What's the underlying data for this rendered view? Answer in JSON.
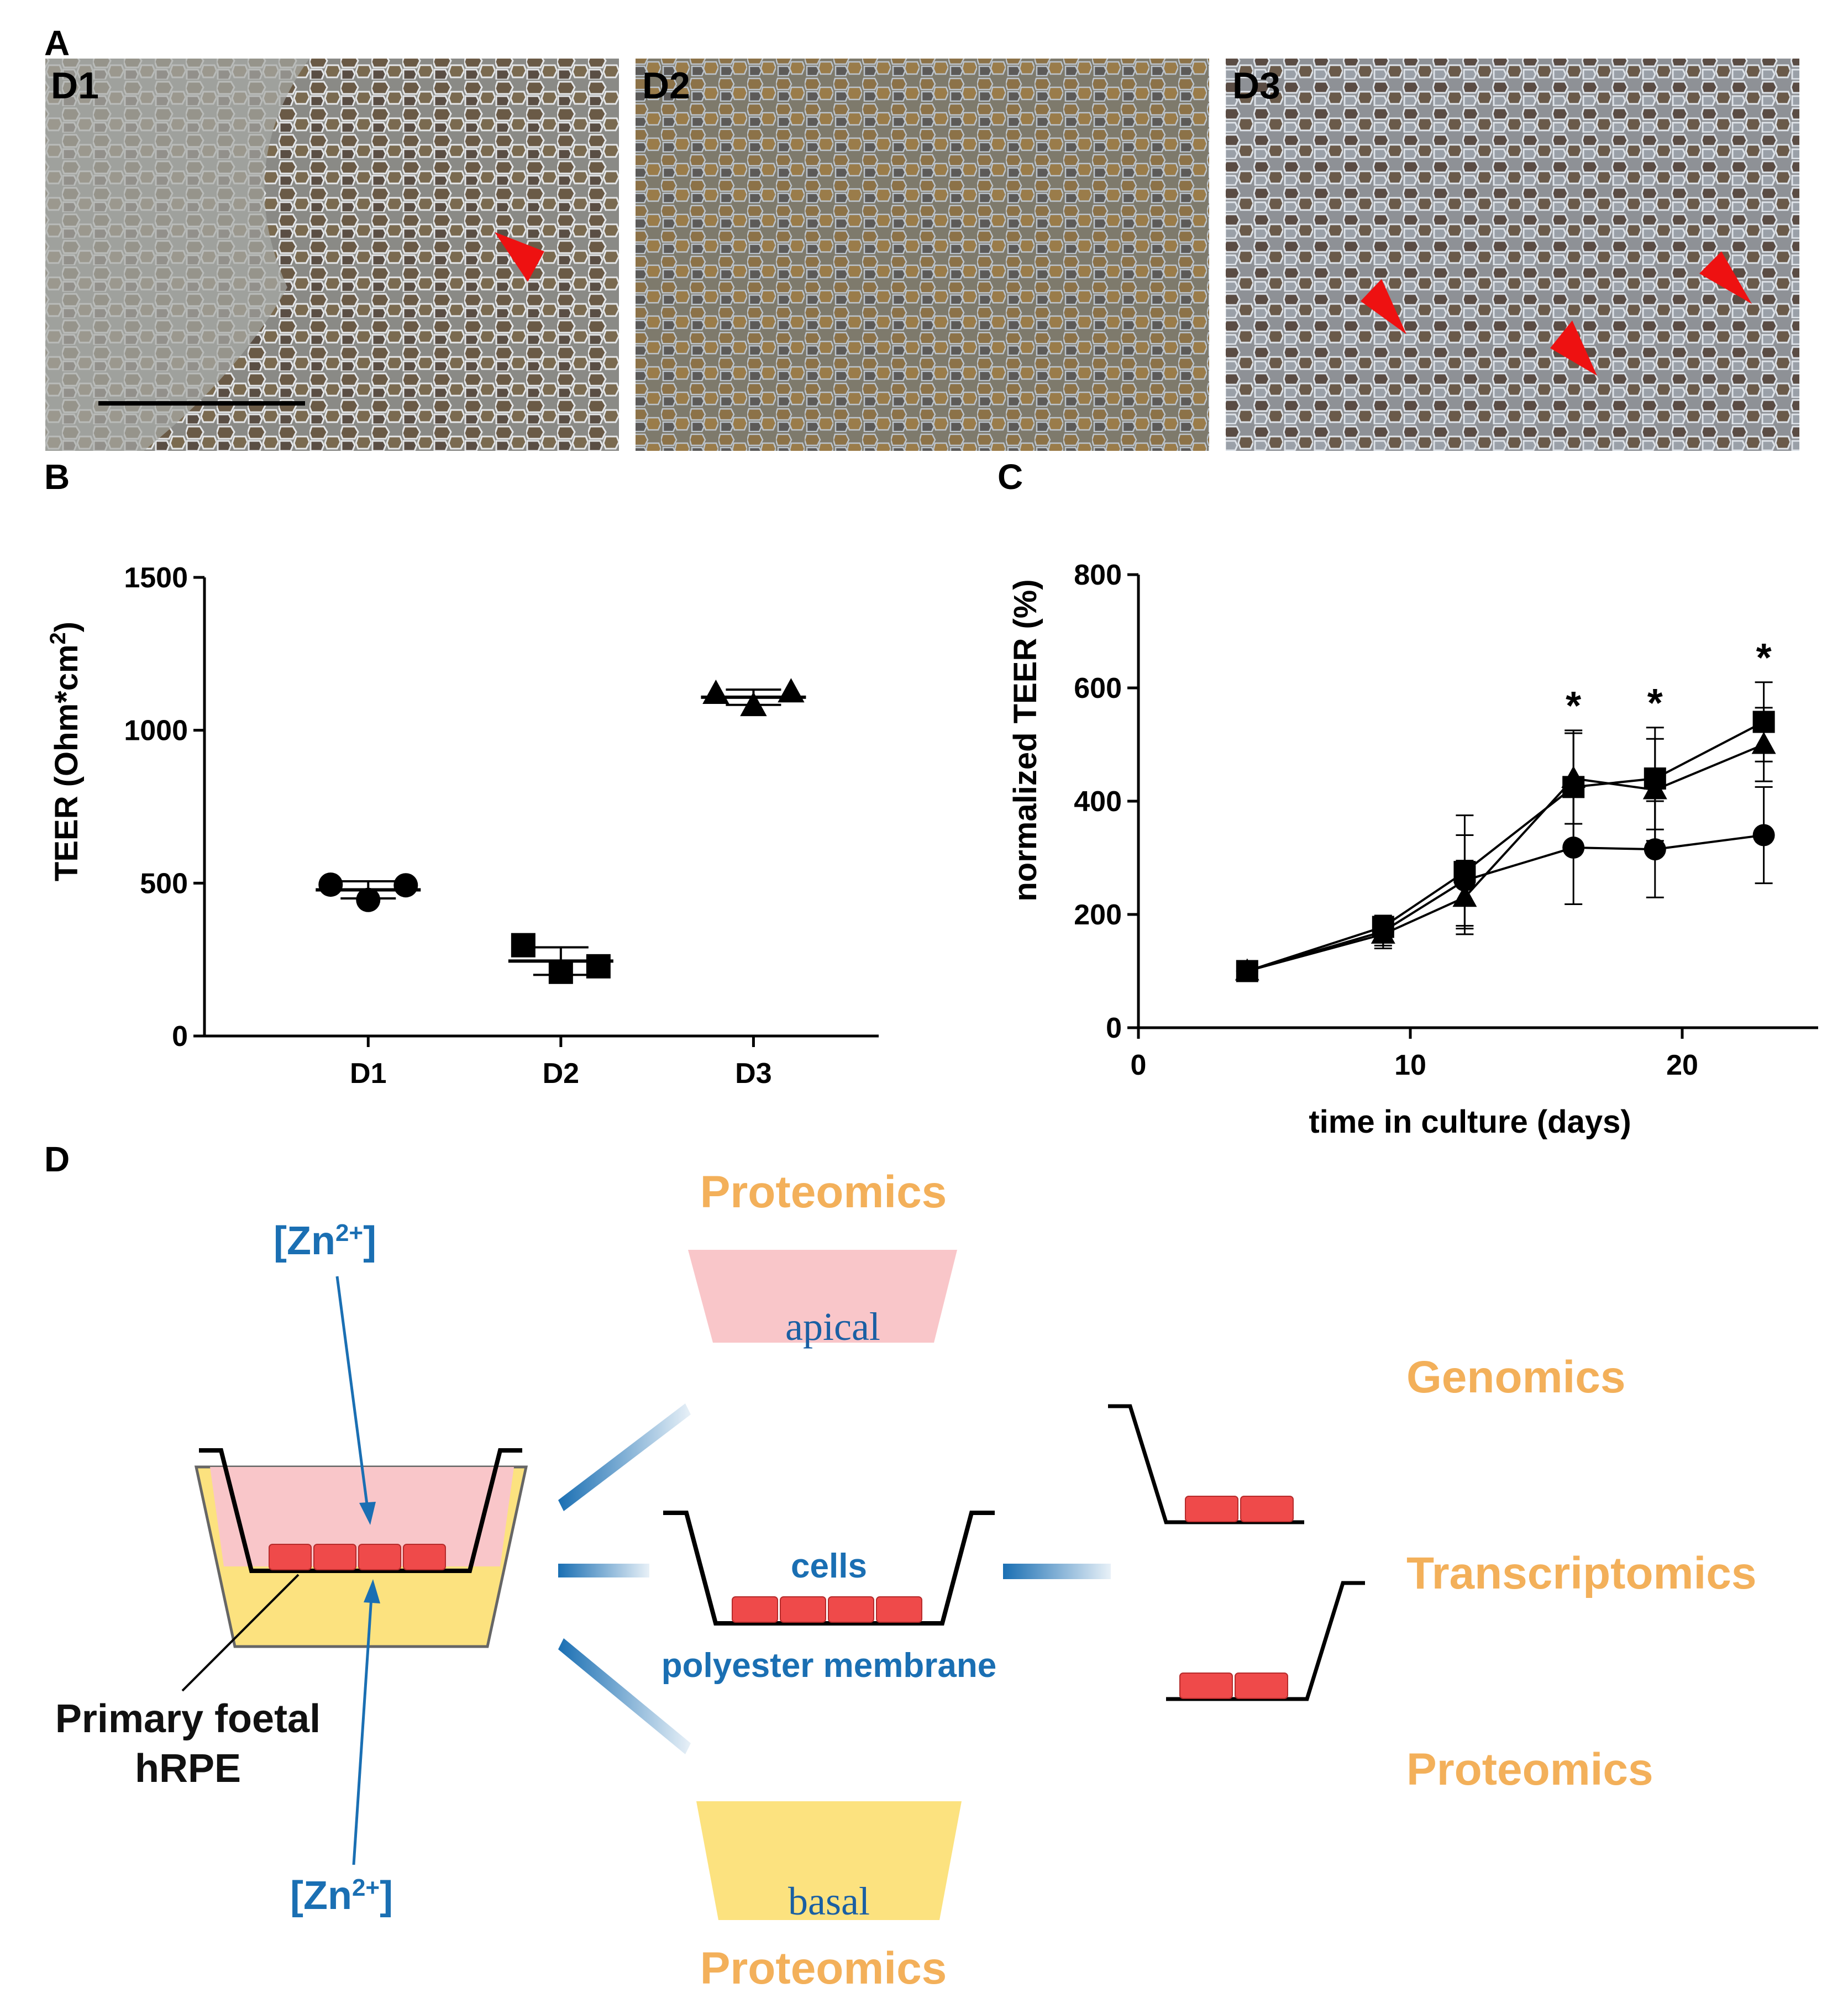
{
  "panels": {
    "a": "A",
    "b": "B",
    "c": "C",
    "d": "D"
  },
  "micrographs": [
    {
      "label": "D1",
      "arrowheads": 1
    },
    {
      "label": "D2",
      "arrowheads": 0
    },
    {
      "label": "D3",
      "arrowheads": 3
    }
  ],
  "chart_data": [
    {
      "type": "scatter",
      "panel": "B",
      "ylabel": "TEER (Ohm*cm²)",
      "ylabel_main": "TEER (Ohm*cm",
      "ylabel_sup": "2",
      "ylabel_close": ")",
      "ylim": [
        0,
        1500
      ],
      "yticks": [
        0,
        500,
        1000,
        1500
      ],
      "categories": [
        "D1",
        "D2",
        "D3"
      ],
      "markers": [
        "circle",
        "square",
        "triangle"
      ],
      "groups": [
        {
          "name": "D1",
          "values": [
            495,
            445,
            493
          ],
          "mean": 478,
          "sd": 28
        },
        {
          "name": "D2",
          "values": [
            297,
            210,
            228
          ],
          "mean": 245,
          "sd": 45
        },
        {
          "name": "D3",
          "values": [
            1120,
            1080,
            1125
          ],
          "mean": 1108,
          "sd": 25
        }
      ]
    },
    {
      "type": "line",
      "panel": "C",
      "xlabel": "time in culture (days)",
      "ylabel": "normalized TEER (%)",
      "xlim": [
        0,
        25
      ],
      "ylim": [
        0,
        800
      ],
      "xticks": [
        0,
        10,
        20
      ],
      "yticks": [
        0,
        200,
        400,
        600,
        800
      ],
      "x": [
        4,
        9,
        12,
        16,
        19,
        23
      ],
      "series": [
        {
          "name": "D1",
          "marker": "circle",
          "values": [
            100,
            170,
            260,
            318,
            315,
            340
          ],
          "err": [
            0,
            25,
            80,
            100,
            85,
            85
          ]
        },
        {
          "name": "D2",
          "marker": "square",
          "values": [
            100,
            178,
            275,
            425,
            440,
            540
          ],
          "err": [
            0,
            20,
            100,
            100,
            90,
            70
          ]
        },
        {
          "name": "D3",
          "marker": "triangle",
          "values": [
            100,
            165,
            230,
            440,
            420,
            500
          ],
          "err": [
            0,
            25,
            65,
            80,
            90,
            65
          ]
        }
      ],
      "significance": [
        {
          "x": 16,
          "label": "*"
        },
        {
          "x": 19,
          "label": "*"
        },
        {
          "x": 23,
          "label": "*"
        }
      ]
    }
  ],
  "schematic": {
    "zn_top": "[Zn",
    "zn_bottom": "[Zn",
    "zn_sup": "2+",
    "zn_close": "]",
    "cells_line1": "Primary foetal",
    "cells_line2": "hRPE",
    "proteomics_top": "Proteomics",
    "apical": "apical",
    "cells": "cells",
    "membrane": "polyester membrane",
    "basal": "basal",
    "proteomics_bottom": "Proteomics",
    "genomics": "Genomics",
    "transcriptomics": "Transcriptomics",
    "proteomics_right": "Proteomics",
    "colors": {
      "apical_fill": "#f9c6c9",
      "basal_fill": "#fce27f",
      "cell_fill": "#ef4a4a",
      "accent_blue": "#1a6fb3",
      "omics_orange": "#f3b05a"
    }
  }
}
